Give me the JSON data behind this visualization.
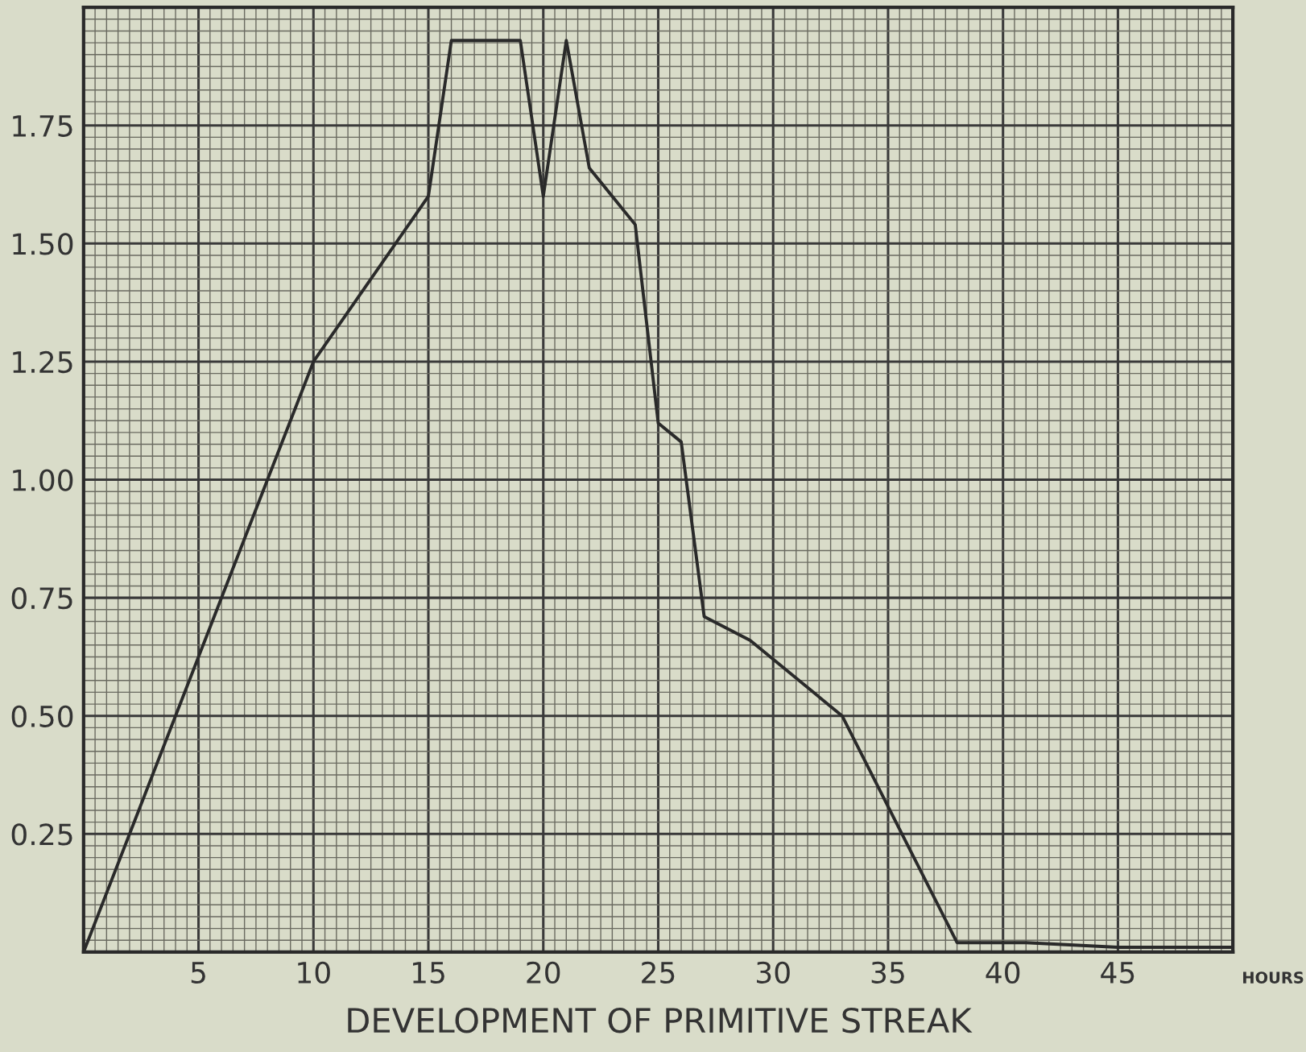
{
  "chart_data": {
    "type": "line",
    "xlabel": "DEVELOPMENT OF PRIMITIVE STREAK",
    "annotations": [
      "HOURS"
    ],
    "x": [
      0,
      10,
      15,
      16,
      19,
      20,
      21,
      22,
      24,
      25,
      26,
      27,
      29,
      33,
      38,
      41,
      45,
      50
    ],
    "series": [
      {
        "color": "#2a2a2a",
        "values": [
          0,
          1.25,
          1.6,
          1.93,
          1.93,
          1.6,
          1.93,
          1.66,
          1.54,
          1.12,
          1.08,
          0.71,
          0.66,
          0.5,
          0.02,
          0.02,
          0.01,
          0.01
        ]
      }
    ],
    "xlim": [
      0,
      50
    ],
    "xticks": [
      {
        "value": 0,
        "label": null
      },
      5,
      10,
      15,
      20,
      25,
      30,
      35,
      40,
      45,
      {
        "value": 50,
        "label": null
      }
    ],
    "ylim": [
      0,
      2.0
    ],
    "yticks": [
      {
        "value": 0,
        "label": null
      },
      0.25,
      {
        "value": 0.5,
        "label": "0.50"
      },
      0.75,
      {
        "value": 1.0,
        "label": "1.00"
      },
      1.25,
      {
        "value": 1.5,
        "label": "1.50"
      },
      1.75,
      {
        "value": 2.0,
        "label": null
      }
    ],
    "grid": true,
    "marker": "none",
    "line_style": "solid"
  }
}
